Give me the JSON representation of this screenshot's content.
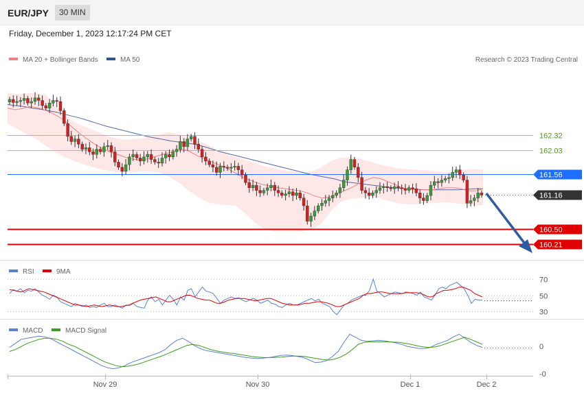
{
  "header": {
    "symbol": "EUR/JPY",
    "timeframe": "30 MIN",
    "datetime": "Friday, December 1, 2023 12:17:24 PM CET",
    "credit": "Research © 2023 Trading Central"
  },
  "chart_data": [
    {
      "type": "candlestick",
      "legend": [
        {
          "name": "MA 20 + Bollinger Bands",
          "color": "#f08080"
        },
        {
          "name": "MA 50",
          "color": "#2b5797"
        }
      ],
      "x_labels": [
        "Nov 29",
        "Nov 30",
        "Dec 1",
        "Dec 2"
      ],
      "ylim": [
        159.95,
        163.62
      ],
      "levels": [
        {
          "value": 162.32,
          "label": "162.32",
          "color": "#9acd5a",
          "style": "line",
          "tag": false
        },
        {
          "value": 162.03,
          "label": "162.03",
          "color": "#9acd5a",
          "style": "line",
          "tag": false
        },
        {
          "value": 161.56,
          "label": "161.56",
          "color": "#1e6fff",
          "style": "line",
          "tag": true
        },
        {
          "value": 161.16,
          "label": "161.16",
          "color": "#333333",
          "style": "dotted",
          "tag": true
        },
        {
          "value": 160.5,
          "label": "160.50",
          "color": "#e00000",
          "style": "line",
          "tag": true
        },
        {
          "value": 160.21,
          "label": "160.21",
          "color": "#e00000",
          "style": "line",
          "tag": true
        }
      ],
      "closes": [
        163.02,
        162.96,
        162.98,
        163.0,
        163.04,
        162.95,
        162.98,
        163.05,
        163.0,
        162.9,
        162.85,
        162.95,
        163.0,
        162.98,
        162.8,
        162.55,
        162.3,
        162.2,
        162.25,
        162.15,
        162.05,
        162.08,
        162.0,
        161.95,
        162.05,
        162.0,
        162.1,
        162.12,
        162.0,
        161.8,
        161.7,
        161.62,
        161.75,
        161.9,
        161.95,
        161.88,
        161.82,
        161.9,
        161.95,
        161.85,
        161.8,
        161.78,
        161.88,
        161.95,
        161.9,
        162.0,
        162.05,
        162.2,
        162.1,
        162.25,
        162.3,
        162.15,
        162.05,
        161.9,
        161.82,
        161.75,
        161.7,
        161.6,
        161.72,
        161.7,
        161.68,
        161.7,
        161.72,
        161.65,
        161.55,
        161.4,
        161.3,
        161.35,
        161.25,
        161.2,
        161.25,
        161.3,
        161.35,
        161.25,
        161.2,
        161.15,
        161.18,
        161.22,
        161.15,
        161.2,
        161.1,
        160.95,
        160.65,
        160.75,
        160.85,
        160.95,
        161.0,
        161.05,
        161.1,
        161.15,
        161.2,
        161.3,
        161.45,
        161.65,
        161.85,
        161.7,
        161.5,
        161.25,
        161.2,
        161.15,
        161.2,
        161.25,
        161.3,
        161.32,
        161.3,
        161.28,
        161.32,
        161.3,
        161.28,
        161.25,
        161.3,
        161.28,
        161.2,
        161.1,
        161.05,
        161.15,
        161.35,
        161.42,
        161.4,
        161.45,
        161.48,
        161.5,
        161.6,
        161.65,
        161.55,
        161.45,
        161.0,
        161.05,
        161.1,
        161.2,
        161.16
      ],
      "ma50": [
        162.92,
        162.9,
        162.88,
        162.85,
        162.83,
        162.8,
        162.77,
        162.73,
        162.69,
        162.65,
        162.6,
        162.55,
        162.5,
        162.46,
        162.42,
        162.38,
        162.34,
        162.3,
        162.27,
        162.24,
        162.21,
        162.19,
        162.17,
        162.14,
        162.1,
        162.05,
        162.0,
        161.96,
        161.92,
        161.88,
        161.84,
        161.8,
        161.76,
        161.72,
        161.68,
        161.64,
        161.6,
        161.56,
        161.53,
        161.5,
        161.47,
        161.42,
        161.4,
        161.38,
        161.36,
        161.34,
        161.32,
        161.3,
        161.29,
        161.28,
        161.27,
        161.26,
        161.26,
        161.26,
        161.26,
        161.26,
        161.27,
        161.28,
        161.28
      ],
      "ma50_x0": 11,
      "ma50_x1": 703,
      "ma20": [
        162.85,
        162.82,
        162.84,
        162.88,
        162.86,
        162.82,
        162.76,
        162.68,
        162.58,
        162.46,
        162.34,
        162.24,
        162.14,
        162.06,
        162.0,
        161.95,
        161.9,
        161.86,
        161.84,
        161.86,
        161.9,
        161.94,
        161.98,
        162.02,
        162.05,
        162.0,
        161.92,
        161.86,
        161.8,
        161.74,
        161.68,
        161.6,
        161.52,
        161.46,
        161.4,
        161.36,
        161.33,
        161.3,
        161.28,
        161.26,
        161.24,
        161.2,
        161.14,
        161.1,
        161.12,
        161.18,
        161.24,
        161.3,
        161.38,
        161.45,
        161.5,
        161.48,
        161.42,
        161.36,
        161.3,
        161.27,
        161.26,
        161.26,
        161.26,
        161.28,
        161.3,
        161.3,
        161.28,
        161.24,
        161.24,
        161.28
      ],
      "bb_upper": [
        163.15,
        163.12,
        163.14,
        163.15,
        163.12,
        162.92,
        162.72,
        162.58,
        162.5,
        162.42,
        162.35,
        162.28,
        162.24,
        162.24,
        162.26,
        162.3,
        162.34,
        162.38,
        162.34,
        162.28,
        162.22,
        162.14,
        162.04,
        161.96,
        161.9,
        161.84,
        161.78,
        161.72,
        161.68,
        161.64,
        161.62,
        161.6,
        161.62,
        161.7,
        161.82,
        161.88,
        161.9,
        161.86,
        161.82,
        161.76,
        161.72,
        161.68,
        161.66,
        161.65,
        161.64,
        161.62,
        161.6,
        161.62,
        161.65,
        161.66,
        161.66
      ],
      "bb_lower": [
        162.55,
        162.45,
        162.35,
        162.25,
        162.12,
        162.0,
        161.9,
        161.82,
        161.76,
        161.7,
        161.65,
        161.62,
        161.6,
        161.6,
        161.62,
        161.62,
        161.6,
        161.52,
        161.4,
        161.25,
        161.12,
        161.02,
        160.98,
        160.97,
        160.95,
        160.8,
        160.62,
        160.5,
        160.45,
        160.45,
        160.45,
        160.45,
        160.5,
        160.6,
        160.85,
        161.02,
        161.08,
        161.1,
        161.12,
        161.1,
        161.05,
        161.0,
        160.98,
        160.98,
        161.0,
        161.0,
        161.02,
        161.0,
        160.98,
        160.96,
        160.96
      ],
      "band_x0": 11,
      "band_x1": 703
    },
    {
      "type": "line",
      "legend": [
        {
          "name": "RSI",
          "color": "#5b7fd6"
        },
        {
          "name": "9MA",
          "color": "#e00000"
        }
      ],
      "ylim": [
        20,
        80
      ],
      "ticks": [
        70,
        50,
        30
      ],
      "rsi": [
        52,
        57,
        55,
        58,
        53,
        56,
        55,
        58,
        54,
        50,
        48,
        45,
        50,
        48,
        42,
        40,
        38,
        36,
        40,
        38,
        36,
        38,
        35,
        36,
        35,
        38,
        40,
        36,
        36,
        38,
        36,
        34,
        38,
        37,
        40,
        36,
        35,
        34,
        44,
        48,
        42,
        45,
        38,
        44,
        50,
        45,
        38,
        48,
        44,
        56,
        58,
        48,
        54,
        60,
        55,
        54,
        52,
        46,
        40,
        44,
        46,
        48,
        46,
        47,
        44,
        42,
        44,
        46,
        44,
        40,
        42,
        44,
        40,
        39,
        36,
        35,
        38,
        40,
        38,
        38,
        40,
        42,
        44,
        46,
        43,
        45,
        40,
        38,
        36,
        30,
        26,
        32,
        38,
        40,
        44,
        46,
        48,
        50,
        50,
        56,
        70,
        55,
        52,
        48,
        50,
        52,
        54,
        53,
        52,
        54,
        53,
        52,
        50,
        54,
        48,
        46,
        44,
        50,
        58,
        60,
        58,
        62,
        64,
        66,
        62,
        58,
        50,
        40,
        45,
        44,
        44
      ],
      "ma9": [
        57,
        56,
        55,
        54,
        56,
        58,
        57,
        56,
        55,
        54,
        52,
        50,
        48,
        46,
        44,
        42,
        40,
        38,
        38,
        37,
        36,
        37,
        38,
        37,
        36,
        37,
        38,
        37,
        36,
        36,
        37,
        38,
        40,
        42,
        44,
        45,
        46,
        47,
        48,
        46,
        44,
        42,
        42,
        44,
        46,
        48,
        50,
        50,
        48,
        46,
        45,
        44,
        44,
        42,
        40,
        40,
        42,
        44,
        45,
        46,
        46,
        46,
        45,
        44,
        43,
        44,
        45,
        46,
        46,
        44,
        42,
        40,
        39,
        38,
        38,
        38,
        39,
        40,
        40,
        41,
        42,
        42,
        41,
        40,
        38,
        36,
        36,
        38,
        40,
        42,
        44,
        46,
        50,
        52,
        52,
        53,
        54,
        54,
        53,
        52,
        52,
        52,
        52,
        53,
        53,
        53,
        53,
        52,
        50,
        48,
        48,
        52,
        54,
        56,
        56,
        57,
        58,
        60,
        60,
        58,
        56,
        52,
        50,
        48
      ]
    },
    {
      "type": "line",
      "legend": [
        {
          "name": "MACD",
          "color": "#5b7fd6"
        },
        {
          "name": "MACD Signal",
          "color": "#3c9a1c"
        }
      ],
      "ticks": [
        "0",
        "-0"
      ],
      "ylim": [
        -2.9,
        1.7
      ],
      "macd": [
        -0.1,
        0.3,
        0.7,
        0.8,
        0.9,
        1.0,
        0.95,
        0.8,
        0.5,
        0.2,
        -0.1,
        -0.4,
        -0.7,
        -1.0,
        -1.3,
        -1.6,
        -1.9,
        -2.1,
        -2.2,
        -2.1,
        -1.9,
        -1.6,
        -1.4,
        -1.2,
        -1.0,
        -0.8,
        -0.6,
        -0.3,
        0.2,
        0.6,
        0.8,
        0.5,
        0.1,
        -0.2,
        -0.4,
        -0.5,
        -0.6,
        -0.7,
        -0.8,
        -0.9,
        -1.0,
        -1.1,
        -1.15,
        -1.2,
        -1.15,
        -1.1,
        -1.0,
        -0.9,
        -0.85,
        -0.9,
        -1.0,
        -1.1,
        -1.35,
        -1.6,
        -1.55,
        -1.4,
        -1.0,
        -0.5,
        0.4,
        1.2,
        0.9,
        0.6,
        0.5,
        0.55,
        0.6,
        0.55,
        0.45,
        0.35,
        0.2,
        0.0,
        -0.1,
        -0.2,
        -0.2,
        -0.1,
        0.2,
        0.4,
        0.6,
        0.95,
        1.2,
        0.8,
        0.4,
        0.1,
        -0.1
      ],
      "signal": [
        -0.5,
        -0.3,
        0.0,
        0.3,
        0.5,
        0.7,
        0.8,
        0.8,
        0.7,
        0.5,
        0.2,
        0.0,
        -0.3,
        -0.6,
        -0.9,
        -1.2,
        -1.5,
        -1.7,
        -1.9,
        -2.0,
        -1.95,
        -1.85,
        -1.7,
        -1.5,
        -1.3,
        -1.1,
        -0.9,
        -0.65,
        -0.4,
        -0.15,
        0.1,
        0.2,
        0.1,
        -0.1,
        -0.3,
        -0.45,
        -0.55,
        -0.65,
        -0.7,
        -0.8,
        -0.9,
        -1.0,
        -1.05,
        -1.1,
        -1.1,
        -1.08,
        -1.05,
        -1.0,
        -0.95,
        -0.95,
        -1.0,
        -1.1,
        -1.2,
        -1.3,
        -1.35,
        -1.25,
        -1.05,
        -0.75,
        -0.3,
        0.2,
        0.4,
        0.45,
        0.45,
        0.45,
        0.45,
        0.42,
        0.4,
        0.3,
        0.2,
        0.05,
        -0.05,
        -0.1,
        -0.05,
        0.1,
        0.3,
        0.5,
        0.7,
        0.9,
        0.7,
        0.45,
        0.2
      ]
    }
  ]
}
